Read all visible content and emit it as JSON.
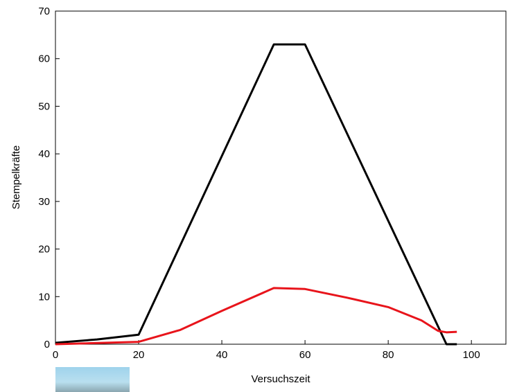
{
  "chart_data": {
    "type": "line",
    "xlabel": "Versuchszeit",
    "ylabel": "Stempelkräfte",
    "xlim": [
      0,
      108.3
    ],
    "xticks": [
      0,
      20,
      40,
      60,
      80,
      100
    ],
    "ylim": [
      0,
      70
    ],
    "yticks": [
      0,
      10,
      20,
      30,
      40,
      50,
      60,
      70
    ],
    "series": [
      {
        "color": "#000000",
        "x": [
          0,
          10,
          20,
          52.5,
          60,
          94,
          96.5
        ],
        "values": [
          0.3,
          1,
          2,
          63,
          63,
          0,
          0
        ]
      },
      {
        "color": "#e8141b",
        "x": [
          0,
          20,
          30,
          40,
          52.5,
          60,
          70,
          80,
          88,
          92,
          94,
          96.5
        ],
        "values": [
          0,
          0.5,
          3,
          7,
          11.8,
          11.6,
          9.8,
          7.8,
          5,
          2.8,
          2.5,
          2.6
        ]
      }
    ]
  }
}
